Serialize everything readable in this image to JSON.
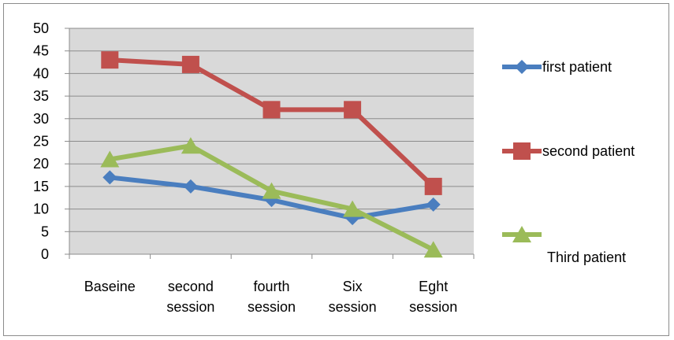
{
  "chart_data": {
    "type": "line",
    "categories": [
      [
        "Baseine"
      ],
      [
        "second",
        "session"
      ],
      [
        "fourth",
        "session"
      ],
      [
        "Six",
        "session"
      ],
      [
        "Eght",
        "session"
      ]
    ],
    "ylim": [
      0,
      50
    ],
    "ytick_step": 5,
    "grid": true,
    "legend_position": "right",
    "series": [
      {
        "name": "first patient",
        "values": [
          17,
          15,
          12,
          8,
          11
        ],
        "color": "#4a7ebf",
        "marker": "diamond"
      },
      {
        "name": "second patient",
        "values": [
          43,
          42,
          32,
          32,
          15
        ],
        "color": "#c0504d",
        "marker": "square"
      },
      {
        "name": "Third patient",
        "values": [
          21,
          24,
          14,
          10,
          1
        ],
        "color": "#9bbb59",
        "marker": "triangle"
      }
    ],
    "plot_background": "#d9d9d9",
    "gridline_color": "#8c8c8c"
  }
}
